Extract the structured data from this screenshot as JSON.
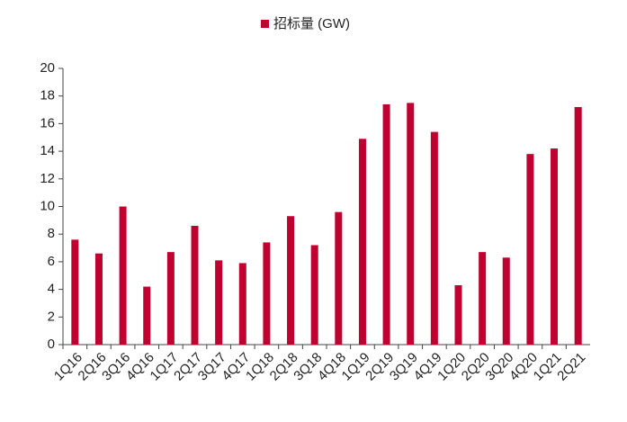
{
  "chart_data": {
    "type": "bar",
    "categories": [
      "1Q16",
      "2Q16",
      "3Q16",
      "4Q16",
      "1Q17",
      "2Q17",
      "3Q17",
      "4Q17",
      "1Q18",
      "2Q18",
      "3Q18",
      "4Q18",
      "1Q19",
      "2Q19",
      "3Q19",
      "4Q19",
      "1Q20",
      "2Q20",
      "3Q20",
      "4Q20",
      "1Q21",
      "2Q21"
    ],
    "series": [
      {
        "name": "招标量 (GW)",
        "color": "#c0002f",
        "values": [
          7.6,
          6.6,
          10.0,
          4.2,
          6.7,
          8.6,
          6.1,
          5.9,
          7.4,
          9.3,
          7.2,
          9.6,
          14.9,
          17.4,
          17.5,
          15.4,
          4.3,
          6.7,
          6.3,
          13.8,
          14.2,
          17.2
        ]
      }
    ],
    "ylim": [
      0,
      20
    ],
    "yticks": [
      0,
      2,
      4,
      6,
      8,
      10,
      12,
      14,
      16,
      18,
      20
    ],
    "legend": "top"
  }
}
